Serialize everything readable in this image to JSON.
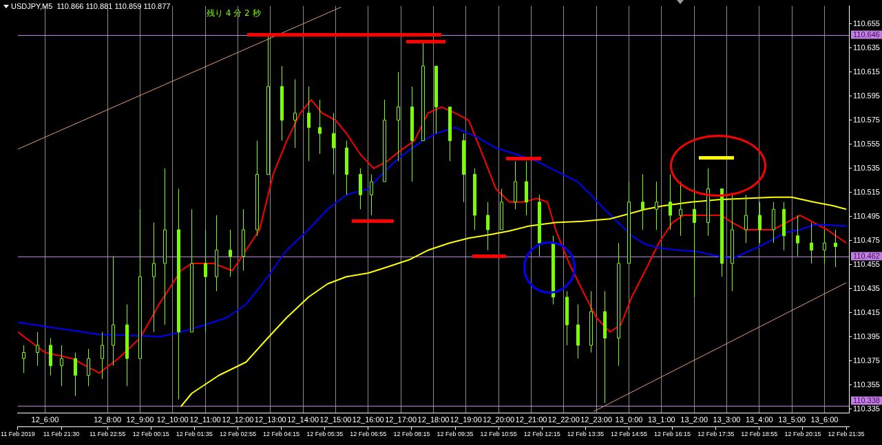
{
  "chart_data": {
    "type": "candlestick",
    "title": "USDJPY,M5  110.866 110.881 110.859 110.877",
    "annotations": [
      "残り 4 分 2 秒"
    ],
    "color": "#7cfc00",
    "x": [
      "2019-02-11T20:20",
      "2019-02-11T20:45",
      "2019-02-11T21:10",
      "2019-02-11T21:30",
      "2019-02-11T21:55",
      "2019-02-11T22:20",
      "2019-02-11T22:45",
      "2019-02-11T23:05",
      "2019-02-11T23:30",
      "2019-02-11T23:55",
      "2019-02-12T00:20",
      "2019-02-12T00:40",
      "2019-02-12T01:05",
      "2019-02-12T01:30",
      "2019-02-12T01:55",
      "2019-02-12T02:15",
      "2019-02-12T02:40",
      "2019-02-12T03:05",
      "2019-02-12T03:30",
      "2019-02-12T03:50",
      "2019-02-12T04:15",
      "2019-02-12T04:40",
      "2019-02-12T05:05",
      "2019-02-12T05:25",
      "2019-02-12T05:50",
      "2019-02-12T06:15",
      "2019-02-12T06:40",
      "2019-02-12T07:00",
      "2019-02-12T07:25",
      "2019-02-12T07:50",
      "2019-02-12T08:15",
      "2019-02-12T08:35",
      "2019-02-12T09:00",
      "2019-02-12T09:25",
      "2019-02-12T09:50",
      "2019-02-12T10:10",
      "2019-02-12T10:35",
      "2019-02-12T11:00",
      "2019-02-12T11:25",
      "2019-02-12T11:45",
      "2019-02-12T12:10",
      "2019-02-12T12:35",
      "2019-02-12T13:00",
      "2019-02-12T13:20",
      "2019-02-12T13:45",
      "2019-02-12T14:10",
      "2019-02-12T14:35",
      "2019-02-12T14:55",
      "2019-02-12T15:20",
      "2019-02-12T15:45",
      "2019-02-12T16:10",
      "2019-02-12T16:30",
      "2019-02-12T16:55",
      "2019-02-12T17:20",
      "2019-02-12T17:45",
      "2019-02-12T18:05",
      "2019-02-12T18:30",
      "2019-02-12T18:55",
      "2019-02-12T19:20",
      "2019-02-12T19:40",
      "2019-02-12T20:05",
      "2019-02-12T20:30",
      "2019-02-12T20:55",
      "2019-02-12T21:15"
    ],
    "ohlc": [
      [
        110.377,
        110.388,
        110.365,
        110.382
      ],
      [
        110.382,
        110.399,
        110.371,
        110.388
      ],
      [
        110.388,
        110.394,
        110.363,
        110.371
      ],
      [
        110.371,
        110.388,
        110.354,
        110.377
      ],
      [
        110.377,
        110.382,
        110.346,
        110.363
      ],
      [
        110.363,
        110.385,
        110.354,
        110.377
      ],
      [
        110.377,
        110.399,
        110.36,
        110.388
      ],
      [
        110.388,
        110.462,
        110.371,
        110.405
      ],
      [
        110.405,
        110.422,
        110.354,
        110.377
      ],
      [
        110.377,
        110.501,
        110.377,
        110.445
      ],
      [
        110.445,
        110.49,
        110.399,
        110.456
      ],
      [
        110.456,
        110.535,
        110.405,
        110.484
      ],
      [
        110.484,
        110.518,
        110.343,
        110.399
      ],
      [
        110.399,
        110.501,
        110.399,
        110.456
      ],
      [
        110.456,
        110.484,
        110.399,
        110.445
      ],
      [
        110.445,
        110.496,
        110.433,
        110.467
      ],
      [
        110.467,
        110.484,
        110.445,
        110.462
      ],
      [
        110.462,
        110.501,
        110.45,
        110.484
      ],
      [
        110.484,
        110.558,
        110.479,
        110.53
      ],
      [
        110.53,
        110.645,
        110.53,
        110.603
      ],
      [
        110.603,
        110.62,
        110.558,
        110.575
      ],
      [
        110.575,
        110.609,
        110.552,
        110.581
      ],
      [
        110.581,
        110.603,
        110.541,
        110.569
      ],
      [
        110.569,
        110.592,
        110.547,
        110.564
      ],
      [
        110.564,
        110.581,
        110.53,
        110.552
      ],
      [
        110.552,
        110.558,
        110.513,
        110.53
      ],
      [
        110.53,
        110.535,
        110.501,
        110.513
      ],
      [
        110.513,
        110.53,
        110.496,
        110.524
      ],
      [
        110.524,
        110.592,
        110.524,
        110.575
      ],
      [
        110.575,
        110.615,
        110.541,
        110.586
      ],
      [
        110.586,
        110.603,
        110.524,
        110.558
      ],
      [
        110.558,
        110.64,
        110.558,
        110.62
      ],
      [
        110.62,
        110.62,
        110.564,
        110.586
      ],
      [
        110.586,
        110.586,
        110.541,
        110.558
      ],
      [
        110.558,
        110.564,
        110.507,
        110.53
      ],
      [
        110.53,
        110.535,
        110.484,
        110.496
      ],
      [
        110.496,
        110.507,
        110.467,
        110.484
      ],
      [
        110.484,
        110.518,
        110.484,
        110.507
      ],
      [
        110.507,
        110.541,
        110.501,
        110.524
      ],
      [
        110.524,
        110.541,
        110.496,
        110.507
      ],
      [
        110.507,
        110.513,
        110.462,
        110.473
      ],
      [
        110.473,
        110.479,
        110.422,
        110.428
      ],
      [
        110.428,
        110.433,
        110.388,
        110.405
      ],
      [
        110.405,
        110.422,
        110.377,
        110.388
      ],
      [
        110.388,
        110.433,
        110.382,
        110.416
      ],
      [
        110.416,
        110.433,
        110.34,
        110.394
      ],
      [
        110.394,
        110.473,
        110.371,
        110.456
      ],
      [
        110.456,
        110.524,
        110.456,
        110.507
      ],
      [
        110.507,
        110.53,
        110.484,
        110.501
      ],
      [
        110.501,
        110.524,
        110.484,
        110.507
      ],
      [
        110.507,
        110.53,
        110.484,
        110.496
      ],
      [
        110.496,
        110.524,
        110.479,
        110.501
      ],
      [
        110.501,
        110.518,
        110.428,
        110.49
      ],
      [
        110.49,
        110.535,
        110.479,
        110.518
      ],
      [
        110.518,
        110.518,
        110.445,
        110.456
      ],
      [
        110.456,
        110.513,
        110.433,
        110.484
      ],
      [
        110.484,
        110.513,
        110.473,
        110.496
      ],
      [
        110.496,
        110.507,
        110.473,
        110.484
      ],
      [
        110.484,
        110.507,
        110.473,
        110.501
      ],
      [
        110.501,
        110.507,
        110.467,
        110.479
      ],
      [
        110.479,
        110.496,
        110.462,
        110.473
      ],
      [
        110.473,
        110.49,
        110.456,
        110.467
      ],
      [
        110.467,
        110.484,
        110.456,
        110.473
      ],
      [
        110.473,
        110.484,
        110.453,
        110.47
      ]
    ],
    "series": [
      {
        "type": "line",
        "color": "#e0a070",
        "x": [
          "2019-02-11T20:10",
          "2019-02-12T06:05"
        ],
        "values": [
          110.551,
          110.669
        ]
      },
      {
        "type": "line",
        "color": "#e0a070",
        "x": [
          "2019-02-12T13:50",
          "2019-02-12T21:35"
        ],
        "values": [
          110.333,
          110.44
        ]
      },
      {
        "type": "line",
        "color": "#ffff00",
        "x": [
          "2019-02-12T01:10",
          "2019-02-12T01:30",
          "2019-02-12T02:20",
          "2019-02-12T03:10",
          "2019-02-12T03:50",
          "2019-02-12T04:25",
          "2019-02-12T05:05",
          "2019-02-12T05:40",
          "2019-02-12T06:15",
          "2019-02-12T06:55",
          "2019-02-12T07:30",
          "2019-02-12T08:10",
          "2019-02-12T08:45",
          "2019-02-12T09:25",
          "2019-02-12T10:00",
          "2019-02-12T10:40",
          "2019-02-12T11:15",
          "2019-02-12T11:50",
          "2019-02-12T12:40",
          "2019-02-12T13:30",
          "2019-02-12T14:20",
          "2019-02-12T14:45",
          "2019-02-12T15:25",
          "2019-02-12T16:00",
          "2019-02-12T16:50",
          "2019-02-12T17:40",
          "2019-02-12T18:30",
          "2019-02-12T19:20",
          "2019-02-12T19:55",
          "2019-02-12T20:35",
          "2019-02-12T21:10",
          "2019-02-12T21:35"
        ],
        "values": [
          110.337,
          110.348,
          110.363,
          110.374,
          110.394,
          110.411,
          110.428,
          110.439,
          110.445,
          110.448,
          110.453,
          110.459,
          110.467,
          110.473,
          110.477,
          110.48,
          110.483,
          110.487,
          110.49,
          110.491,
          110.493,
          110.496,
          110.501,
          110.504,
          110.507,
          110.509,
          110.51,
          110.511,
          110.511,
          110.507,
          110.504,
          110.501
        ]
      },
      {
        "type": "line",
        "color": "#0000ff",
        "x": [
          "2019-02-11T20:10",
          "2019-02-11T21:25",
          "2019-02-11T22:40",
          "2019-02-11T23:55",
          "2019-02-12T00:30",
          "2019-02-12T01:10",
          "2019-02-12T01:55",
          "2019-02-12T02:35",
          "2019-02-12T03:10",
          "2019-02-12T03:50",
          "2019-02-12T04:25",
          "2019-02-12T05:05",
          "2019-02-12T05:40",
          "2019-02-12T06:15",
          "2019-02-12T06:55",
          "2019-02-12T07:20",
          "2019-02-12T07:45",
          "2019-02-12T08:10",
          "2019-02-12T08:35",
          "2019-02-12T09:00",
          "2019-02-12T09:35",
          "2019-02-12T10:15",
          "2019-02-12T10:50",
          "2019-02-12T11:25",
          "2019-02-12T12:05",
          "2019-02-12T12:40",
          "2019-02-12T13:20",
          "2019-02-12T13:45",
          "2019-02-12T14:10",
          "2019-02-12T14:35",
          "2019-02-12T15:00",
          "2019-02-12T15:25",
          "2019-02-12T15:50",
          "2019-02-12T16:25",
          "2019-02-12T17:00",
          "2019-02-12T17:40",
          "2019-02-12T18:05",
          "2019-02-12T18:30",
          "2019-02-12T18:55",
          "2019-02-12T19:20",
          "2019-02-12T19:45",
          "2019-02-12T20:10",
          "2019-02-12T20:35",
          "2019-02-12T21:00",
          "2019-02-12T21:35"
        ],
        "values": [
          110.407,
          110.402,
          110.397,
          110.396,
          110.395,
          110.399,
          110.405,
          110.411,
          110.422,
          110.445,
          110.467,
          110.484,
          110.501,
          110.513,
          110.518,
          110.53,
          110.541,
          110.55,
          110.558,
          110.564,
          110.569,
          110.561,
          110.552,
          110.547,
          110.541,
          110.533,
          110.524,
          110.513,
          110.501,
          110.49,
          110.479,
          110.472,
          110.469,
          110.467,
          110.466,
          110.462,
          110.46,
          110.465,
          110.47,
          110.476,
          110.482,
          110.484,
          110.488,
          110.488,
          110.487
        ]
      },
      {
        "type": "line",
        "color": "#ff0000",
        "x": [
          "2019-02-11T20:10",
          "2019-02-11T21:00",
          "2019-02-11T21:50",
          "2019-02-11T22:40",
          "2019-02-11T23:15",
          "2019-02-11T23:55",
          "2019-02-12T00:30",
          "2019-02-12T01:10",
          "2019-02-12T01:30",
          "2019-02-12T02:10",
          "2019-02-12T02:45",
          "2019-02-12T03:10",
          "2019-02-12T03:35",
          "2019-02-12T04:00",
          "2019-02-12T04:25",
          "2019-02-12T04:50",
          "2019-02-12T05:10",
          "2019-02-12T05:30",
          "2019-02-12T05:55",
          "2019-02-12T06:15",
          "2019-02-12T06:40",
          "2019-02-12T07:05",
          "2019-02-12T07:30",
          "2019-02-12T07:55",
          "2019-02-12T08:20",
          "2019-02-12T08:45",
          "2019-02-12T09:10",
          "2019-02-12T09:35",
          "2019-02-12T10:00",
          "2019-02-12T10:25",
          "2019-02-12T10:50",
          "2019-02-12T11:15",
          "2019-02-12T11:40",
          "2019-02-12T12:05",
          "2019-02-12T12:25",
          "2019-02-12T12:40",
          "2019-02-12T13:05",
          "2019-02-12T13:30",
          "2019-02-12T13:55",
          "2019-02-12T14:20",
          "2019-02-12T14:40",
          "2019-02-12T15:00",
          "2019-02-12T15:25",
          "2019-02-12T15:50",
          "2019-02-12T16:15",
          "2019-02-12T16:35",
          "2019-02-12T17:00",
          "2019-02-12T17:25",
          "2019-02-12T17:45",
          "2019-02-12T18:05",
          "2019-02-12T18:30",
          "2019-02-12T18:55",
          "2019-02-12T19:20",
          "2019-02-12T19:45",
          "2019-02-12T20:10",
          "2019-02-12T20:35",
          "2019-02-12T21:00",
          "2019-02-12T21:35"
        ],
        "values": [
          110.399,
          110.382,
          110.377,
          110.365,
          110.377,
          110.394,
          110.422,
          110.45,
          110.456,
          110.456,
          110.45,
          110.467,
          110.484,
          110.53,
          110.558,
          110.581,
          110.592,
          110.581,
          110.575,
          110.564,
          110.547,
          110.535,
          110.541,
          110.55,
          110.558,
          110.581,
          110.586,
          110.581,
          110.575,
          110.547,
          110.518,
          110.507,
          110.507,
          110.51,
          110.507,
          110.484,
          110.456,
          110.433,
          110.411,
          110.399,
          110.405,
          110.428,
          110.45,
          110.473,
          110.49,
          110.496,
          110.496,
          110.496,
          110.496,
          110.49,
          110.484,
          110.484,
          110.484,
          110.49,
          110.496,
          110.49,
          110.484,
          110.473
        ]
      }
    ],
    "xlim": [
      "2019-02-11T20:10",
      "2019-02-12T21:40"
    ],
    "xticks": [
      {
        "value": "2019-02-11T21:00",
        "label": "12_6:00"
      },
      {
        "value": "2019-02-11T22:55",
        "label": "12_8:00"
      },
      {
        "value": "2019-02-11T23:55",
        "label": "12_9:00"
      },
      {
        "value": "2019-02-12T00:55",
        "label": "12_10:00"
      },
      {
        "value": "2019-02-12T01:55",
        "label": "12_11:00"
      },
      {
        "value": "2019-02-12T02:55",
        "label": "12_12:00"
      },
      {
        "value": "2019-02-12T03:55",
        "label": "12_13:00"
      },
      {
        "value": "2019-02-12T04:55",
        "label": "12_14:00"
      },
      {
        "value": "2019-02-12T05:55",
        "label": "12_15:00"
      },
      {
        "value": "2019-02-12T06:55",
        "label": "12_16:00"
      },
      {
        "value": "2019-02-12T07:55",
        "label": "12_17:00"
      },
      {
        "value": "2019-02-12T08:55",
        "label": "12_18:00"
      },
      {
        "value": "2019-02-12T09:55",
        "label": "12_19:00"
      },
      {
        "value": "2019-02-12T10:55",
        "label": "12_20:00"
      },
      {
        "value": "2019-02-12T11:55",
        "label": "12_21:00"
      },
      {
        "value": "2019-02-12T12:55",
        "label": "12_22:00"
      },
      {
        "value": "2019-02-12T13:55",
        "label": "12_23:00"
      },
      {
        "value": "2019-02-12T14:55",
        "label": "13_0:00"
      },
      {
        "value": "2019-02-12T15:55",
        "label": "13_1:00"
      },
      {
        "value": "2019-02-12T16:55",
        "label": "13_2:00"
      },
      {
        "value": "2019-02-12T17:55",
        "label": "13_3:00"
      },
      {
        "value": "2019-02-12T18:55",
        "label": "13_4:00"
      },
      {
        "value": "2019-02-12T19:55",
        "label": "13_5:00"
      },
      {
        "value": "2019-02-12T20:55",
        "label": "13_6:00"
      }
    ],
    "x2lim": [
      "2019-02-11T20:10",
      "2019-02-12T21:40"
    ],
    "x2ticks": [
      {
        "value": "2019-02-11T20:10",
        "label": "11 Feb 2019"
      },
      {
        "value": "2019-02-11T21:30",
        "label": "11 Feb 21:30"
      },
      {
        "value": "2019-02-11T22:55",
        "label": "11 Feb 22:55"
      },
      {
        "value": "2019-02-12T00:15",
        "label": "12 Feb 00:15"
      },
      {
        "value": "2019-02-12T01:35",
        "label": "12 Feb 01:35"
      },
      {
        "value": "2019-02-12T02:55",
        "label": "12 Feb 02:55"
      },
      {
        "value": "2019-02-12T04:15",
        "label": "12 Feb 04:15"
      },
      {
        "value": "2019-02-12T05:35",
        "label": "12 Feb 05:35"
      },
      {
        "value": "2019-02-12T06:55",
        "label": "12 Feb 06:55"
      },
      {
        "value": "2019-02-12T08:15",
        "label": "12 Feb 08:15"
      },
      {
        "value": "2019-02-12T09:35",
        "label": "12 Feb 09:35"
      },
      {
        "value": "2019-02-12T10:55",
        "label": "12 Feb 10:55"
      },
      {
        "value": "2019-02-12T12:15",
        "label": "12 Feb 12:15"
      },
      {
        "value": "2019-02-12T13:35",
        "label": "12 Feb 13:35"
      },
      {
        "value": "2019-02-12T14:55",
        "label": "12 Feb 14:55"
      },
      {
        "value": "2019-02-12T16:15",
        "label": "12 Feb 16:15"
      },
      {
        "value": "2019-02-12T17:35",
        "label": "12 Feb 17:35"
      },
      {
        "value": "2019-02-12T18:55",
        "label": "12 Feb 18:55"
      },
      {
        "value": "2019-02-12T20:15",
        "label": "12 Feb 20:15"
      },
      {
        "value": "2019-02-12T21:35",
        "label": "12 Feb 21:35"
      }
    ],
    "ylim": [
      110.332,
      110.67
    ],
    "yticks": [
      110.335,
      110.355,
      110.375,
      110.395,
      110.415,
      110.435,
      110.455,
      110.475,
      110.495,
      110.515,
      110.535,
      110.555,
      110.575,
      110.595,
      110.615,
      110.635,
      110.655
    ],
    "ref_lines": [
      {
        "axis": "y",
        "value": 110.646,
        "label": "110.646",
        "color": "#c080e0"
      },
      {
        "axis": "y",
        "value": 110.462,
        "label": "110.462",
        "color": "#c080e0"
      },
      {
        "axis": "y",
        "value": 110.338,
        "label": "110.338",
        "color": "#c080e0"
      }
    ],
    "grid": "x"
  }
}
